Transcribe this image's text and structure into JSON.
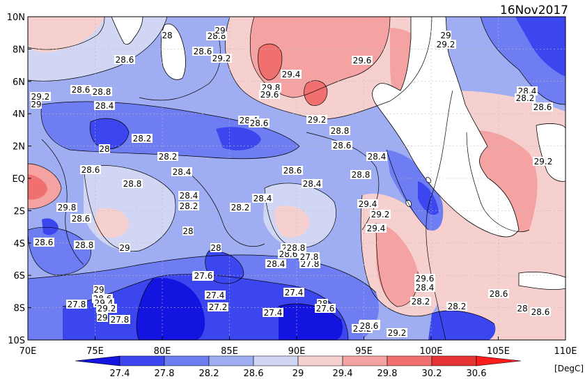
{
  "date_label": "16Nov2017",
  "unit_label": "[DegC]",
  "x_axis": {
    "ticks": [
      "70E",
      "75E",
      "80E",
      "85E",
      "90E",
      "95E",
      "100E",
      "105E",
      "110E"
    ]
  },
  "y_axis": {
    "ticks": [
      "10N",
      "8N",
      "6N",
      "4N",
      "2N",
      "EQ",
      "2S",
      "4S",
      "6S",
      "8S",
      "10S"
    ]
  },
  "colorbar": {
    "ticks": [
      "27.4",
      "27.8",
      "28.2",
      "28.6",
      "29",
      "29.4",
      "29.8",
      "30.2",
      "30.6"
    ],
    "colors": [
      "#1414e0",
      "#3c46ee",
      "#6e7ef2",
      "#9fadf2",
      "#d0d6f4",
      "#f6d0cf",
      "#f4a3a2",
      "#f0706f",
      "#e63434",
      "#ff1c1c"
    ]
  },
  "contour_labels": [
    "28.6",
    "29.2",
    "29",
    "28.6",
    "28.8",
    "28.4",
    "28.2",
    "28",
    "28.2",
    "28.6",
    "28.4",
    "28.8",
    "29.8",
    "28.6",
    "28.4",
    "28.2",
    "28",
    "28.6",
    "28.8",
    "29",
    "28.4",
    "28.6",
    "28.2",
    "28",
    "28",
    "28.6",
    "29.8",
    "29.2",
    "29.6",
    "29.4",
    "29.6",
    "29.2",
    "28.8",
    "28.6",
    "28.4",
    "28.4",
    "28.4",
    "28.6",
    "28.8",
    "28.2",
    "28.4",
    "27.8",
    "27.6",
    "27.4",
    "27.2",
    "27.4",
    "28",
    "27.6",
    "28.4",
    "28.2",
    "28.6",
    "27.8",
    "29",
    "28.6",
    "29.4",
    "29.2",
    "29",
    "27.8",
    "27.6",
    "27.4",
    "27.8",
    "28.8",
    "29.4",
    "29.2",
    "29.4",
    "29.6",
    "28.4",
    "28.2",
    "28.6",
    "29.2",
    "28.6",
    "28",
    "28.6",
    "28.2",
    "29",
    "29.2",
    "28.4",
    "28.2",
    "28.6",
    "29.2",
    "28.8",
    "29"
  ]
}
